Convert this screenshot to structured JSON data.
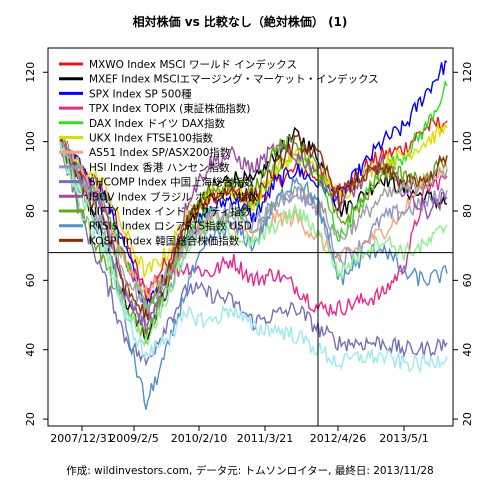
{
  "chart_data": {
    "type": "line",
    "title": "相対株価 vs 比較なし（絶対株価） (1)",
    "caption": "作成: wildinvestors.com, データ元: トムソンロイター, 最終日: 2013/11/28",
    "x_tick_labels": [
      "2007/12/31",
      "2009/2/5",
      "2010/2/10",
      "2011/3/21",
      "2012/4/26",
      "2013/5/1"
    ],
    "y_ticks": [
      20,
      40,
      60,
      80,
      100,
      120
    ],
    "ylim": [
      18,
      127
    ],
    "reference_lines": {
      "horizontal_y": 68,
      "vertical_x": "2011/10/14"
    },
    "series": [
      {
        "name": "MXWO Index MSCI ワールド インデックス",
        "color": "#e41a1c",
        "values": [
          100,
          92,
          86,
          72,
          56,
          66,
          78,
          84,
          86,
          82,
          88,
          92,
          90,
          86,
          92,
          96,
          98,
          104,
          106
        ]
      },
      {
        "name": "MXEF Index MSCIエマージング・マーケット・インデックス",
        "color": "#000000",
        "values": [
          100,
          86,
          72,
          54,
          44,
          58,
          76,
          86,
          90,
          88,
          96,
          102,
          96,
          80,
          84,
          90,
          86,
          84,
          82
        ]
      },
      {
        "name": "SPX Index SP 500種",
        "color": "#0000ff",
        "values": [
          100,
          92,
          86,
          70,
          52,
          62,
          74,
          80,
          84,
          78,
          88,
          92,
          88,
          84,
          92,
          100,
          104,
          114,
          123
        ]
      },
      {
        "name": "TPX Index TOPIX (東証株価指数)",
        "color": "#e7298a",
        "values": [
          100,
          90,
          80,
          66,
          56,
          62,
          64,
          62,
          66,
          60,
          62,
          58,
          52,
          52,
          54,
          56,
          64,
          86,
          90
        ]
      },
      {
        "name": "DAX Index ドイツ DAX指数",
        "color": "#33dd22",
        "values": [
          100,
          90,
          84,
          66,
          52,
          62,
          74,
          80,
          78,
          82,
          92,
          96,
          90,
          72,
          82,
          92,
          96,
          104,
          116
        ]
      },
      {
        "name": "UKX Index FTSE100指数",
        "color": "#dddd00",
        "values": [
          100,
          92,
          88,
          74,
          62,
          68,
          80,
          86,
          86,
          82,
          92,
          96,
          92,
          84,
          90,
          94,
          96,
          100,
          104
        ]
      },
      {
        "name": "AS51 Index SP/ASX200指数",
        "color": "#f4a582",
        "values": [
          100,
          90,
          82,
          66,
          56,
          62,
          72,
          78,
          76,
          72,
          78,
          78,
          72,
          66,
          70,
          74,
          80,
          90,
          92
        ]
      },
      {
        "name": "HSI Index 香港 ハンセン指数",
        "color": "#8c96c6",
        "values": [
          100,
          86,
          74,
          56,
          48,
          56,
          72,
          78,
          80,
          76,
          82,
          86,
          80,
          66,
          70,
          78,
          80,
          82,
          86
        ]
      },
      {
        "name": "SHCOMP Index 中国上海総合指数",
        "color": "#7570b3",
        "values": [
          100,
          78,
          62,
          44,
          36,
          48,
          58,
          56,
          54,
          48,
          50,
          52,
          46,
          42,
          42,
          42,
          40,
          40,
          42
        ]
      },
      {
        "name": "IBOV Index ブラジル ボベスパ指数",
        "color": "#984ea3",
        "values": [
          100,
          90,
          82,
          56,
          46,
          62,
          84,
          94,
          96,
          92,
          98,
          96,
          92,
          82,
          88,
          94,
          86,
          80,
          84
        ]
      },
      {
        "name": "NIFTY Index インド ニフティ指数",
        "color": "#66a61e",
        "values": [
          100,
          80,
          66,
          52,
          44,
          58,
          78,
          86,
          88,
          86,
          98,
          100,
          92,
          76,
          82,
          92,
          90,
          88,
          96
        ]
      },
      {
        "name": "RTSI$ Index ロシアRTS指数 USD",
        "color": "#5590c8",
        "values": [
          100,
          88,
          80,
          48,
          24,
          40,
          60,
          72,
          76,
          70,
          82,
          90,
          82,
          60,
          66,
          70,
          62,
          60,
          62
        ]
      },
      {
        "name": "KOSPI Index 韓国総合株価指数",
        "color": "#8c2d04",
        "values": [
          100,
          88,
          78,
          58,
          50,
          62,
          78,
          84,
          86,
          84,
          92,
          100,
          96,
          84,
          90,
          92,
          88,
          88,
          96
        ]
      },
      {
        "name": "",
        "color": "#a0a0a0",
        "values": [
          100,
          88,
          78,
          62,
          52,
          62,
          72,
          76,
          78,
          74,
          82,
          86,
          82,
          72,
          78,
          84,
          86,
          88,
          92
        ]
      },
      {
        "name": "",
        "color": "#90ee90",
        "values": [
          100,
          84,
          72,
          52,
          42,
          56,
          70,
          76,
          74,
          70,
          76,
          80,
          74,
          62,
          68,
          72,
          68,
          70,
          76
        ]
      },
      {
        "name": "",
        "color": "#9ee8f0",
        "values": [
          100,
          80,
          70,
          50,
          38,
          44,
          50,
          48,
          52,
          46,
          46,
          44,
          40,
          36,
          38,
          38,
          36,
          36,
          38
        ]
      }
    ]
  }
}
